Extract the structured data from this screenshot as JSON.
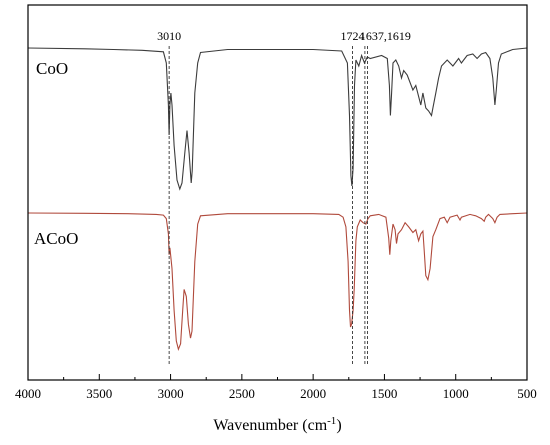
{
  "chart_data": {
    "type": "line",
    "title": "",
    "xlabel": "Wavenumber (cm",
    "xlabel_superscript": "-1",
    "xlabel_close": ")",
    "xlim": [
      4000,
      500
    ],
    "x_reversed": true,
    "x_ticks": [
      4000,
      3500,
      3000,
      2500,
      2000,
      1500,
      1000,
      500
    ],
    "y_ticks_shown": false,
    "grid": false,
    "series": [
      {
        "name": "CoO",
        "color": "#3c3c3c",
        "baseline": 1.0,
        "points": [
          [
            4000,
            1.0
          ],
          [
            3600,
            0.995
          ],
          [
            3400,
            0.99
          ],
          [
            3200,
            0.985
          ],
          [
            3050,
            0.975
          ],
          [
            3030,
            0.9
          ],
          [
            3015,
            0.62
          ],
          [
            3010,
            0.42
          ],
          [
            3005,
            0.62
          ],
          [
            2998,
            0.7
          ],
          [
            2990,
            0.62
          ],
          [
            2975,
            0.35
          ],
          [
            2955,
            0.12
          ],
          [
            2935,
            0.06
          ],
          [
            2920,
            0.1
          ],
          [
            2900,
            0.3
          ],
          [
            2885,
            0.45
          ],
          [
            2870,
            0.3
          ],
          [
            2855,
            0.1
          ],
          [
            2848,
            0.18
          ],
          [
            2830,
            0.7
          ],
          [
            2810,
            0.9
          ],
          [
            2790,
            0.97
          ],
          [
            2600,
            0.99
          ],
          [
            2000,
            0.99
          ],
          [
            1800,
            0.98
          ],
          [
            1760,
            0.9
          ],
          [
            1745,
            0.55
          ],
          [
            1735,
            0.15
          ],
          [
            1728,
            0.08
          ],
          [
            1720,
            0.2
          ],
          [
            1710,
            0.75
          ],
          [
            1700,
            0.92
          ],
          [
            1680,
            0.88
          ],
          [
            1660,
            0.95
          ],
          [
            1640,
            0.9
          ],
          [
            1620,
            0.94
          ],
          [
            1600,
            0.93
          ],
          [
            1520,
            0.95
          ],
          [
            1480,
            0.93
          ],
          [
            1465,
            0.75
          ],
          [
            1458,
            0.55
          ],
          [
            1450,
            0.7
          ],
          [
            1440,
            0.9
          ],
          [
            1420,
            0.92
          ],
          [
            1400,
            0.88
          ],
          [
            1380,
            0.8
          ],
          [
            1365,
            0.85
          ],
          [
            1340,
            0.82
          ],
          [
            1300,
            0.72
          ],
          [
            1280,
            0.75
          ],
          [
            1245,
            0.62
          ],
          [
            1230,
            0.7
          ],
          [
            1210,
            0.6
          ],
          [
            1190,
            0.58
          ],
          [
            1170,
            0.55
          ],
          [
            1160,
            0.6
          ],
          [
            1140,
            0.7
          ],
          [
            1120,
            0.8
          ],
          [
            1100,
            0.88
          ],
          [
            1060,
            0.92
          ],
          [
            1020,
            0.88
          ],
          [
            980,
            0.93
          ],
          [
            960,
            0.9
          ],
          [
            920,
            0.95
          ],
          [
            880,
            0.96
          ],
          [
            850,
            0.93
          ],
          [
            820,
            0.96
          ],
          [
            790,
            0.97
          ],
          [
            760,
            0.93
          ],
          [
            740,
            0.8
          ],
          [
            725,
            0.62
          ],
          [
            715,
            0.72
          ],
          [
            700,
            0.9
          ],
          [
            680,
            0.96
          ],
          [
            600,
            0.99
          ],
          [
            500,
            1.0
          ]
        ]
      },
      {
        "name": "ACoO",
        "color": "#b04a3c",
        "baseline": 1.0,
        "points": [
          [
            4000,
            1.0
          ],
          [
            3600,
            0.998
          ],
          [
            3300,
            0.995
          ],
          [
            3100,
            0.99
          ],
          [
            3050,
            0.985
          ],
          [
            3030,
            0.96
          ],
          [
            3015,
            0.85
          ],
          [
            3010,
            0.7
          ],
          [
            3005,
            0.75
          ],
          [
            2990,
            0.6
          ],
          [
            2975,
            0.3
          ],
          [
            2960,
            0.08
          ],
          [
            2945,
            0.02
          ],
          [
            2930,
            0.06
          ],
          [
            2915,
            0.3
          ],
          [
            2905,
            0.45
          ],
          [
            2890,
            0.4
          ],
          [
            2875,
            0.2
          ],
          [
            2860,
            0.1
          ],
          [
            2850,
            0.15
          ],
          [
            2830,
            0.65
          ],
          [
            2810,
            0.92
          ],
          [
            2790,
            0.98
          ],
          [
            2600,
            0.995
          ],
          [
            2000,
            0.995
          ],
          [
            1820,
            0.99
          ],
          [
            1790,
            0.97
          ],
          [
            1770,
            0.9
          ],
          [
            1755,
            0.65
          ],
          [
            1745,
            0.3
          ],
          [
            1738,
            0.18
          ],
          [
            1730,
            0.2
          ],
          [
            1720,
            0.3
          ],
          [
            1712,
            0.45
          ],
          [
            1700,
            0.8
          ],
          [
            1690,
            0.9
          ],
          [
            1670,
            0.95
          ],
          [
            1650,
            0.93
          ],
          [
            1630,
            0.92
          ],
          [
            1615,
            0.96
          ],
          [
            1600,
            0.98
          ],
          [
            1540,
            0.99
          ],
          [
            1490,
            0.97
          ],
          [
            1470,
            0.82
          ],
          [
            1462,
            0.7
          ],
          [
            1455,
            0.8
          ],
          [
            1440,
            0.92
          ],
          [
            1425,
            0.88
          ],
          [
            1415,
            0.78
          ],
          [
            1405,
            0.85
          ],
          [
            1380,
            0.88
          ],
          [
            1355,
            0.93
          ],
          [
            1330,
            0.9
          ],
          [
            1300,
            0.86
          ],
          [
            1280,
            0.88
          ],
          [
            1260,
            0.8
          ],
          [
            1245,
            0.85
          ],
          [
            1230,
            0.87
          ],
          [
            1220,
            0.72
          ],
          [
            1210,
            0.55
          ],
          [
            1195,
            0.52
          ],
          [
            1180,
            0.6
          ],
          [
            1160,
            0.83
          ],
          [
            1140,
            0.88
          ],
          [
            1110,
            0.96
          ],
          [
            1080,
            0.97
          ],
          [
            1060,
            0.93
          ],
          [
            1040,
            0.97
          ],
          [
            990,
            0.985
          ],
          [
            970,
            0.95
          ],
          [
            960,
            0.97
          ],
          [
            900,
            0.99
          ],
          [
            880,
            0.985
          ],
          [
            860,
            0.98
          ],
          [
            820,
            0.96
          ],
          [
            800,
            0.94
          ],
          [
            790,
            0.97
          ],
          [
            770,
            0.99
          ],
          [
            740,
            0.96
          ],
          [
            725,
            0.93
          ],
          [
            710,
            0.97
          ],
          [
            690,
            0.99
          ],
          [
            600,
            0.995
          ],
          [
            500,
            1.0
          ]
        ]
      }
    ],
    "reference_lines": [
      {
        "x": 3010,
        "label": "3010"
      },
      {
        "x": 1724,
        "label": "1724"
      },
      {
        "x": 1637,
        "label": "1637,1619"
      },
      {
        "x": 1619,
        "label": ""
      }
    ]
  }
}
